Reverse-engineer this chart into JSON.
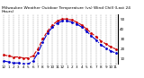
{
  "title": "Milwaukee Weather Outdoor Temperature (vs) Wind Chill (Last 24 Hours)",
  "bg_color": "#ffffff",
  "grid_color": "#888888",
  "hours": [
    0,
    1,
    2,
    3,
    4,
    5,
    6,
    7,
    8,
    9,
    10,
    11,
    12,
    13,
    14,
    15,
    16,
    17,
    18,
    19,
    20,
    21,
    22,
    23
  ],
  "temp": [
    14,
    13,
    12,
    12,
    11,
    11,
    13,
    20,
    30,
    38,
    44,
    48,
    50,
    50,
    49,
    47,
    44,
    40,
    36,
    32,
    28,
    25,
    22,
    20
  ],
  "wind_chill": [
    8,
    7,
    6,
    6,
    5,
    5,
    8,
    16,
    27,
    36,
    42,
    46,
    48,
    48,
    47,
    45,
    42,
    38,
    33,
    29,
    24,
    21,
    18,
    16
  ],
  "temp_color": "#cc0000",
  "wind_color": "#0000cc",
  "ylim": [
    5,
    55
  ],
  "yticks": [
    10,
    20,
    30,
    40,
    50
  ],
  "xticks": [
    0,
    1,
    2,
    3,
    4,
    5,
    6,
    7,
    8,
    9,
    10,
    11,
    12,
    13,
    14,
    15,
    16,
    17,
    18,
    19,
    20,
    21,
    22,
    23
  ],
  "xtick_labels": [
    "12",
    "1",
    "2",
    "3",
    "4",
    "5",
    "6",
    "7",
    "8",
    "9",
    "10",
    "11",
    "12",
    "1",
    "2",
    "3",
    "4",
    "5",
    "6",
    "7",
    "8",
    "9",
    "10",
    "11"
  ],
  "line_style_temp": "--",
  "line_style_wind": "-.",
  "marker": ".",
  "marker_size": 2,
  "line_width": 0.8,
  "title_fontsize": 3.2,
  "tick_fontsize": 3.0
}
